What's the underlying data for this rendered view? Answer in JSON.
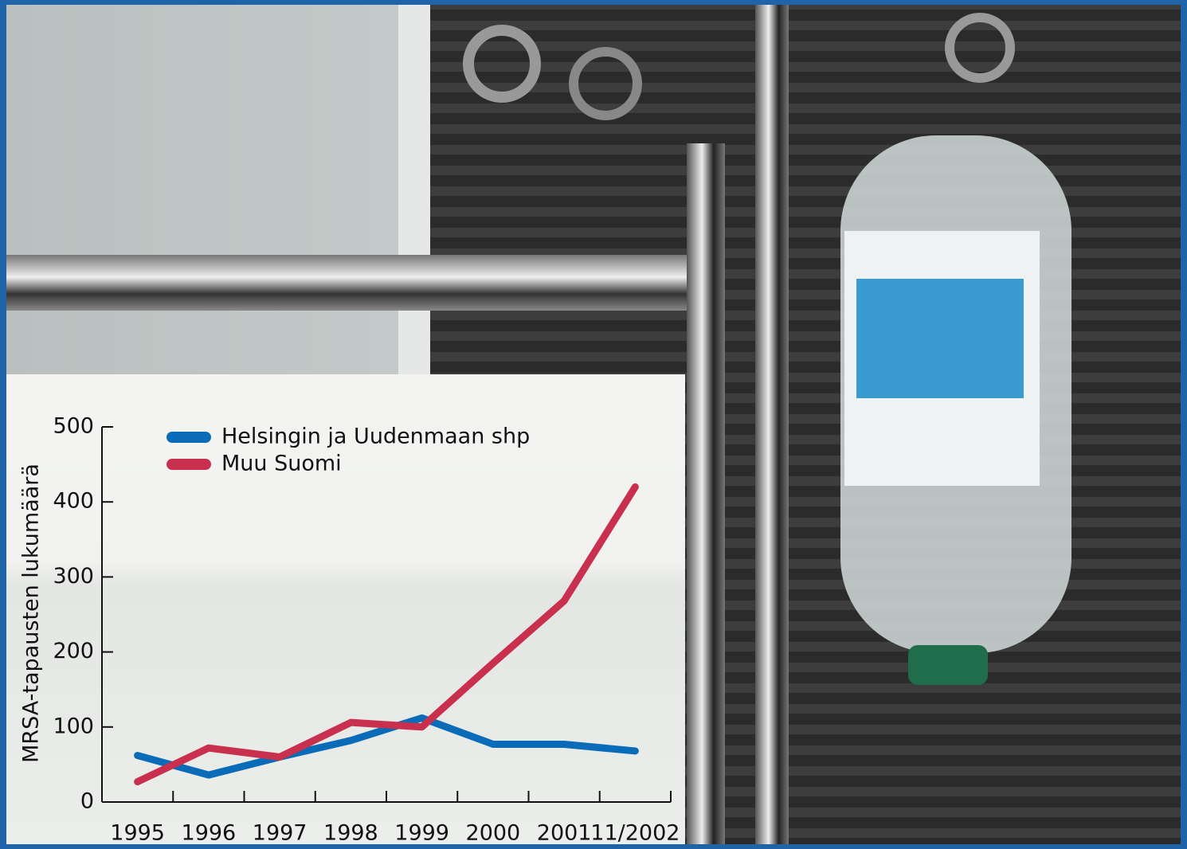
{
  "chart_data": {
    "type": "line",
    "y_label": "MRSA-tapausten lukumäärä",
    "categories": [
      "1995",
      "1996",
      "1997",
      "1998",
      "1999",
      "2000",
      "2001",
      "11/2002"
    ],
    "series": [
      {
        "name": "Helsingin ja Uudenmaan shp",
        "color": "#0a6cb8",
        "values": [
          62,
          36,
          60,
          82,
          112,
          77,
          77,
          68
        ]
      },
      {
        "name": "Muu Suomi",
        "color": "#c8304e",
        "values": [
          27,
          72,
          60,
          106,
          100,
          185,
          268,
          420
        ]
      }
    ],
    "ylim": [
      0,
      500
    ],
    "yticks": [
      0,
      100,
      200,
      300,
      400,
      500
    ]
  }
}
